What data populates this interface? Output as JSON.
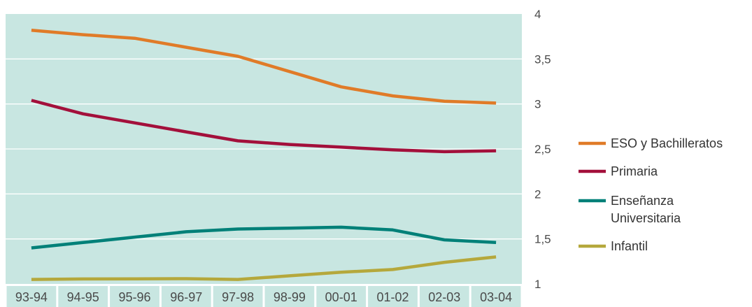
{
  "chart_data": {
    "type": "line",
    "categories": [
      "93-94",
      "94-95",
      "95-96",
      "96-97",
      "97-98",
      "98-99",
      "00-01",
      "01-02",
      "02-03",
      "03-04"
    ],
    "ylim": [
      1,
      4
    ],
    "y_ticks": [
      "1",
      "1,5",
      "2",
      "2,5",
      "3",
      "3,5",
      "4"
    ],
    "grid": true,
    "legend_position": "right",
    "plot_background": "#c8e6e1",
    "series": [
      {
        "name": "ESO y Bachilleratos",
        "color": "#e07b28",
        "values": [
          3.82,
          3.77,
          3.73,
          3.63,
          3.53,
          3.36,
          3.19,
          3.09,
          3.03,
          3.01
        ]
      },
      {
        "name": "Primaria",
        "color": "#a3103b",
        "values": [
          3.04,
          2.89,
          2.79,
          2.69,
          2.59,
          2.55,
          2.52,
          2.49,
          2.47,
          2.48
        ]
      },
      {
        "name": "Enseñanza Universitaria",
        "legend_lines": [
          "Enseñanza",
          "Universitaria"
        ],
        "color": "#008078",
        "values": [
          1.4,
          1.46,
          1.52,
          1.58,
          1.61,
          1.62,
          1.63,
          1.6,
          1.49,
          1.46
        ]
      },
      {
        "name": "Infantil",
        "color": "#b5a83c",
        "values": [
          1.05,
          1.055,
          1.057,
          1.058,
          1.05,
          1.09,
          1.13,
          1.16,
          1.24,
          1.3
        ]
      }
    ]
  }
}
